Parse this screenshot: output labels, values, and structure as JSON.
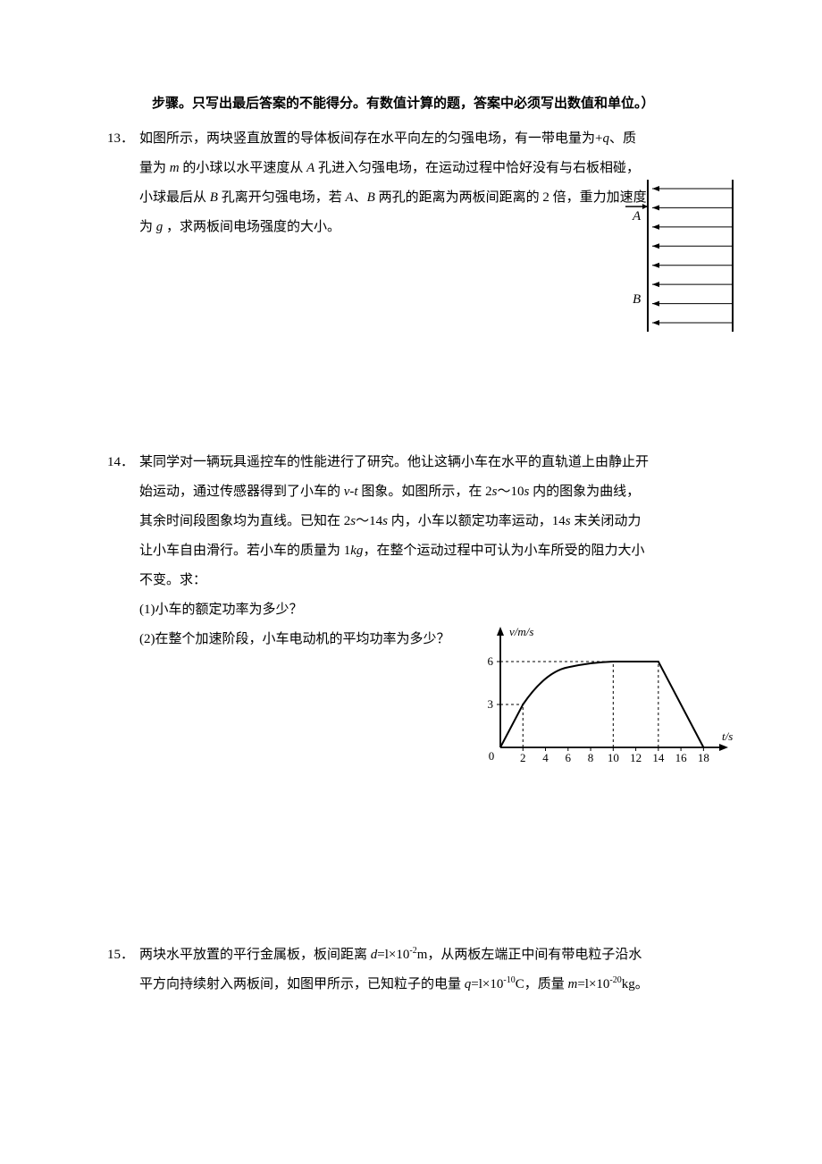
{
  "instruction": "步骤。只写出最后答案的不能得分。有数值计算的题，答案中必须写出数值和单位。）",
  "q13": {
    "number": "13．",
    "line1": "如图所示，两块竖直放置的导体板间存在水平向左的匀强电场，有一带电量为+",
    "q": "q",
    "line1b": "、质",
    "line2a": "量为 ",
    "m": "m",
    "line2b": " 的小球以水平速度从 ",
    "A": "A",
    "line2c": " 孔进入匀强电场，在运动过程中恰好没有与右板相碰，",
    "line3a": "小球最后从 ",
    "B": "B",
    "line3b": " 孔离开匀强电场，若 ",
    "line3c": "、",
    "line3d": " 两孔的距离为两板间距离的 2 倍，重力加速度",
    "line4a": "为 ",
    "g": "g",
    "line4b": " ，求两板间电场强度的大小。",
    "figure": {
      "label_A": "A",
      "label_B": "B",
      "plate_color": "#000000",
      "arrow_color": "#000000",
      "n_arrows": 8
    }
  },
  "q14": {
    "number": "14．",
    "line1": "某同学对一辆玩具遥控车的性能进行了研究。他让这辆小车在水平的直轨道上由静止开",
    "line2a": "始运动，通过传感器得到了小车的 ",
    "vt": "v-t",
    "line2b": " 图象。如图所示，在 2",
    "s": "s",
    "line2c": "～10",
    "line2d": " 内的图象为曲线，",
    "line3a": "其余时间段图象均为直线。已知在 2",
    "line3b": "～14",
    "line3c": " 内，小车以额定功率运动，14",
    "line3d": " 末关闭动力",
    "line4a": "让小车自由滑行。若小车的质量为 1",
    "kg": "kg",
    "line4b": "，在整个运动过程中可认为小车所受的阻力大小",
    "line5": "不变。求：",
    "sub1": "(1)小车的额定功率为多少？",
    "sub2": "(2)在整个加速阶段，小车电动机的平均功率为多少？",
    "figure": {
      "ylabel": "v/m/s",
      "xlabel": "t/s",
      "y_ticks": [
        0,
        3,
        6
      ],
      "x_ticks": [
        2,
        4,
        6,
        8,
        10,
        12,
        14,
        16,
        18
      ],
      "origin_label": "0",
      "axis_color": "#000000",
      "curve_color": "#000000",
      "dash_color": "#000000",
      "xlim": [
        0,
        19
      ],
      "ylim": [
        0,
        7.5
      ],
      "curve_points": [
        [
          0,
          0
        ],
        [
          2,
          3
        ],
        [
          4,
          4.7
        ],
        [
          6,
          5.5
        ],
        [
          8,
          5.85
        ],
        [
          10,
          6
        ],
        [
          14,
          6
        ],
        [
          18,
          0
        ]
      ],
      "dash_v": [
        2,
        10,
        14
      ],
      "dash_h": [
        3,
        6
      ]
    }
  },
  "q15": {
    "number": "15．",
    "line1a": "两块水平放置的平行金属板，板间距离 ",
    "d_expr": "d",
    "eq1": "=l×10",
    "exp1": "-2",
    "unit_m": "m",
    "line1b": "，从两板左端正中间有带电粒子沿水",
    "line2a": "平方向持续射入两板间，如图甲所示，已知粒子的电量 ",
    "q_expr": "q",
    "eq2": "=l×10",
    "exp2": "-10",
    "unit_c": "C",
    "comma": "，质量 ",
    "m_expr": "m",
    "eq3": "=l×10",
    "exp3": "-20",
    "unit_kg": "kg",
    "period": "。"
  }
}
